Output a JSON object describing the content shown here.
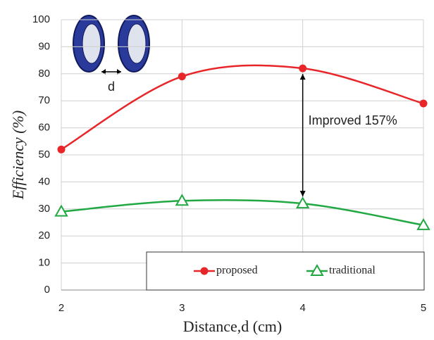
{
  "chart_data": {
    "type": "line",
    "x_label": "Distance,d (cm)",
    "y_label": "Efficiency (%)",
    "x": [
      2,
      3,
      4,
      5
    ],
    "series": [
      {
        "name": "proposed",
        "color": "#e8262a",
        "marker": "circle",
        "values": [
          52,
          79,
          82,
          69
        ]
      },
      {
        "name": "traditional",
        "color": "#22a843",
        "marker": "triangle",
        "values": [
          29,
          33,
          32,
          24
        ]
      }
    ],
    "xlim": [
      2,
      5
    ],
    "xticks": [
      2,
      3,
      4,
      5
    ],
    "ylim": [
      0,
      100
    ],
    "yticks": [
      0,
      10,
      20,
      30,
      40,
      50,
      60,
      70,
      80,
      90,
      100
    ],
    "grid": true,
    "legend": "lower right",
    "annotations": [
      "Improved 157%",
      "d"
    ]
  }
}
